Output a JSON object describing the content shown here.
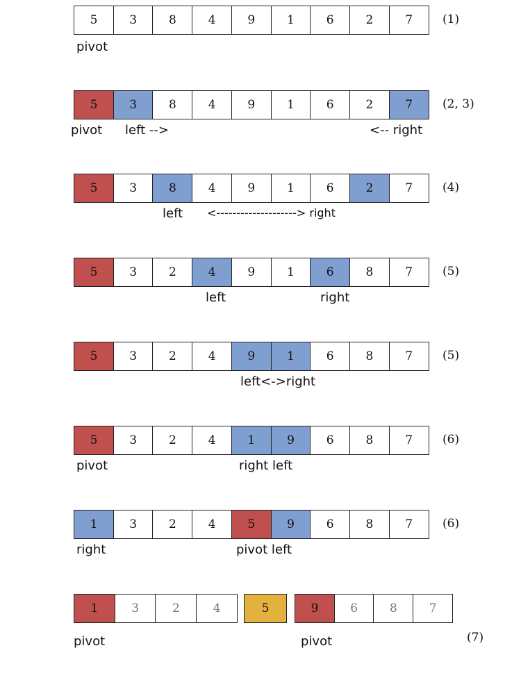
{
  "rows": [
    {
      "cells": [
        "5",
        "3",
        "8",
        "4",
        "9",
        "1",
        "6",
        "2",
        "7"
      ],
      "step": "(1)",
      "labels": {
        "a": "pivot"
      }
    },
    {
      "cells": [
        "5",
        "3",
        "8",
        "4",
        "9",
        "1",
        "6",
        "2",
        "7"
      ],
      "step": "(2, 3)",
      "labels": {
        "a": "pivot",
        "b": "left -->",
        "c": "<-- right"
      }
    },
    {
      "cells": [
        "5",
        "3",
        "8",
        "4",
        "9",
        "1",
        "6",
        "2",
        "7"
      ],
      "step": "(4)",
      "labels": {
        "a": "left",
        "b": "<--------------------> right"
      }
    },
    {
      "cells": [
        "5",
        "3",
        "2",
        "4",
        "9",
        "1",
        "6",
        "8",
        "7"
      ],
      "step": "(5)",
      "labels": {
        "a": "left",
        "b": "right"
      }
    },
    {
      "cells": [
        "5",
        "3",
        "2",
        "4",
        "9",
        "1",
        "6",
        "8",
        "7"
      ],
      "step": "(5)",
      "labels": {
        "a": "left<->right"
      }
    },
    {
      "cells": [
        "5",
        "3",
        "2",
        "4",
        "1",
        "9",
        "6",
        "8",
        "7"
      ],
      "step": "(6)",
      "labels": {
        "a": "pivot",
        "b": "right left"
      }
    },
    {
      "cells": [
        "1",
        "3",
        "2",
        "4",
        "5",
        "9",
        "6",
        "8",
        "7"
      ],
      "step": "(6)",
      "labels": {
        "a": "right",
        "b": "pivot left"
      }
    }
  ],
  "final": {
    "left": [
      "1",
      "3",
      "2",
      "4"
    ],
    "mid": [
      "5"
    ],
    "right": [
      "9",
      "6",
      "8",
      "7"
    ],
    "step": "(7)",
    "labels": {
      "a": "pivot",
      "b": "pivot"
    }
  },
  "colors": {
    "pivot": "#c0504d",
    "pointer": "#7f9fd0",
    "placed": "#e2b13e"
  }
}
